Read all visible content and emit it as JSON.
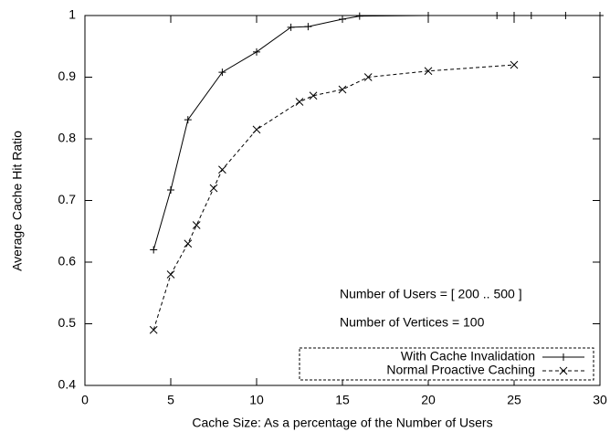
{
  "chart_data": {
    "type": "line",
    "xlabel": "Cache Size: As a percentage of the Number of Users",
    "ylabel": "Average Cache Hit Ratio",
    "xlim": [
      0,
      30
    ],
    "xticks": [
      0,
      5,
      10,
      15,
      20,
      25,
      30
    ],
    "ylim": [
      0.4,
      1
    ],
    "yticks": [
      0.4,
      0.5,
      0.6,
      0.7,
      0.8,
      0.9,
      1
    ],
    "legend": "bottom right",
    "annotations": [
      "Number of Users = [ 200 .. 500 ]",
      "Number of Vertices = 100"
    ],
    "series": [
      {
        "name": "With Cache Invalidation",
        "color": "#000000",
        "dashed": false,
        "marker": "+",
        "x": [
          4,
          5,
          6,
          8,
          10,
          12,
          13,
          15,
          16,
          20,
          24,
          25,
          26,
          28,
          30
        ],
        "values": [
          0.62,
          0.717,
          0.831,
          0.908,
          0.941,
          0.981,
          0.982,
          0.994,
          0.999,
          1,
          1,
          1,
          1,
          1,
          1
        ]
      },
      {
        "name": "Normal Proactive Caching",
        "color": "#000000",
        "dashed": true,
        "marker": "x",
        "x": [
          4,
          5,
          6,
          6.5,
          7.5,
          8,
          10,
          12.5,
          13.3,
          15,
          16.5,
          20,
          25
        ],
        "values": [
          0.49,
          0.58,
          0.63,
          0.66,
          0.72,
          0.75,
          0.815,
          0.86,
          0.87,
          0.88,
          0.9,
          0.91,
          0.92
        ]
      }
    ]
  }
}
